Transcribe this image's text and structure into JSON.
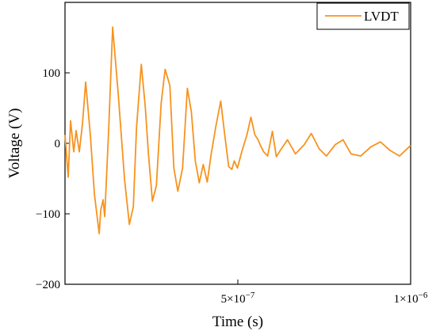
{
  "chart_data": {
    "type": "line",
    "title": "",
    "xlabel": "Time (s)",
    "ylabel": "Voltage (V)",
    "xlim": [
      0,
      1e-06
    ],
    "ylim": [
      -200,
      200
    ],
    "grid": false,
    "legend_position": "top-right",
    "x_ticks": [
      {
        "value": 5e-07,
        "mantissa": "5",
        "exponent": "−7"
      },
      {
        "value": 1e-06,
        "mantissa": "1",
        "exponent": "−6"
      }
    ],
    "y_ticks": [
      {
        "value": 100,
        "label": "100"
      },
      {
        "value": 0,
        "label": "0"
      },
      {
        "value": -100,
        "label": "−100"
      },
      {
        "value": -200,
        "label": "−200"
      }
    ],
    "series": [
      {
        "name": "LVDT",
        "color": "#F7931E",
        "x": [
          0,
          9.2e-09,
          1.61e-08,
          2.53e-08,
          3.22e-08,
          4.14e-08,
          5.06e-08,
          5.98e-08,
          7.36e-08,
          8.51e-08,
          9.89e-08,
          1.034e-07,
          1.103e-07,
          1.149e-07,
          1.264e-07,
          1.379e-07,
          1.54e-07,
          1.724e-07,
          1.862e-07,
          1.977e-07,
          2.069e-07,
          2.207e-07,
          2.322e-07,
          2.414e-07,
          2.529e-07,
          2.644e-07,
          2.782e-07,
          2.897e-07,
          3.034e-07,
          3.149e-07,
          3.264e-07,
          3.402e-07,
          3.54e-07,
          3.655e-07,
          3.77e-07,
          3.885e-07,
          4e-07,
          4.115e-07,
          4.23e-07,
          4.368e-07,
          4.506e-07,
          4.621e-07,
          4.736e-07,
          4.828e-07,
          4.897e-07,
          4.989e-07,
          5.126e-07,
          5.264e-07,
          5.379e-07,
          5.494e-07,
          5.586e-07,
          5.655e-07,
          5.747e-07,
          5.862e-07,
          6e-07,
          6.115e-07,
          6.23e-07,
          6.437e-07,
          6.667e-07,
          6.92e-07,
          7.126e-07,
          7.356e-07,
          7.563e-07,
          7.816e-07,
          8.046e-07,
          8.276e-07,
          8.552e-07,
          8.851e-07,
          9.126e-07,
          9.402e-07,
          9.678e-07,
          1e-06
        ],
        "y": [
          12,
          -48,
          32,
          -12,
          18,
          -12,
          28,
          87,
          10,
          -72,
          -128,
          -95,
          -80,
          -104,
          20,
          165,
          70,
          -52,
          -115,
          -90,
          22,
          112,
          52,
          -15,
          -82,
          -60,
          57,
          105,
          82,
          -35,
          -68,
          -35,
          78,
          45,
          -25,
          -56,
          -30,
          -55,
          -15,
          25,
          60,
          12,
          -33,
          -37,
          -25,
          -35,
          -10,
          12,
          37,
          12,
          5,
          -3,
          -12,
          -18,
          17,
          -19,
          -10,
          5,
          -15,
          -2,
          14,
          -8,
          -18,
          -2,
          5,
          -15,
          -18,
          -5,
          2,
          -10,
          -18,
          -3
        ]
      }
    ]
  }
}
